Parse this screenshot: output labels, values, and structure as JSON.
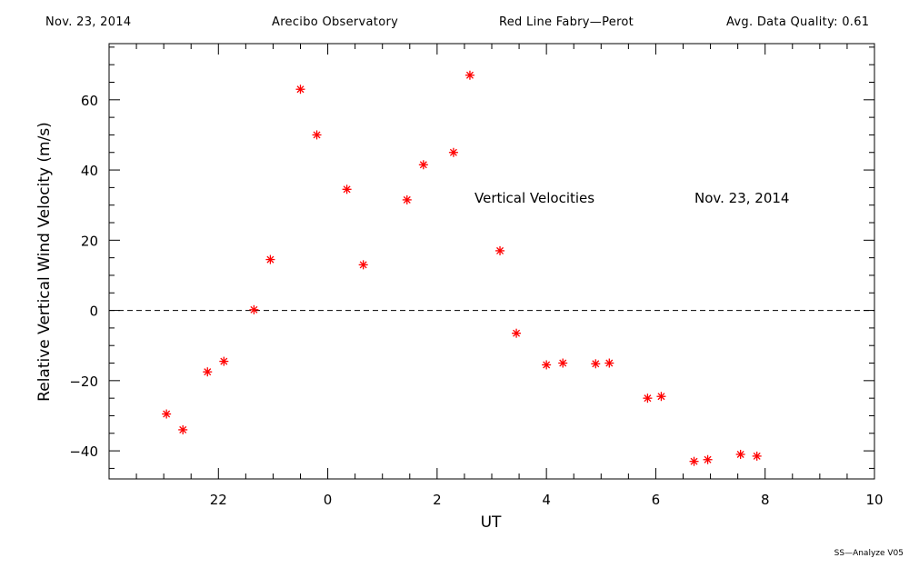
{
  "header": {
    "date": "Nov. 23, 2014",
    "observatory": "Arecibo Observatory",
    "instrument": "Red Line Fabry—Perot",
    "quality": "Avg. Data Quality: 0.61"
  },
  "footer": {
    "version": "SS—Analyze V05"
  },
  "chart_data": {
    "type": "scatter",
    "marker": "asterisk",
    "marker_color": "#ff0000",
    "xlabel": "UT",
    "ylabel": "Relative Vertical Wind Velocity (m/s)",
    "xlim": [
      -2.0,
      12.0
    ],
    "ylim": [
      -48,
      76
    ],
    "x_major_ticks": [
      {
        "value": 0.0,
        "label": "22"
      },
      {
        "value": 2.0,
        "label": "0"
      },
      {
        "value": 4.0,
        "label": "2"
      },
      {
        "value": 6.0,
        "label": "4"
      },
      {
        "value": 8.0,
        "label": "6"
      },
      {
        "value": 10.0,
        "label": "8"
      },
      {
        "value": 12.0,
        "label": "10"
      }
    ],
    "y_major_ticks": [
      -40,
      -20,
      0,
      20,
      40,
      60
    ],
    "zero_line": "dashed",
    "annotations": [
      "Vertical Velocities",
      "Nov. 23, 2014"
    ],
    "series": [
      {
        "points": [
          [
            -0.95,
            -29.5
          ],
          [
            -0.65,
            -34.0
          ],
          [
            -0.2,
            -17.5
          ],
          [
            0.1,
            -14.5
          ],
          [
            0.65,
            0.2
          ],
          [
            0.95,
            14.5
          ],
          [
            1.5,
            63.0
          ],
          [
            1.8,
            50.0
          ],
          [
            2.35,
            34.5
          ],
          [
            2.65,
            13.0
          ],
          [
            3.45,
            31.5
          ],
          [
            3.75,
            41.5
          ],
          [
            4.3,
            45.0
          ],
          [
            4.6,
            67.0
          ],
          [
            5.15,
            17.0
          ],
          [
            5.45,
            -6.5
          ],
          [
            6.0,
            -15.5
          ],
          [
            6.3,
            -15.0
          ],
          [
            6.9,
            -15.2
          ],
          [
            7.15,
            -15.0
          ],
          [
            7.85,
            -25.0
          ],
          [
            8.1,
            -24.5
          ],
          [
            8.7,
            -43.0
          ],
          [
            8.95,
            -42.5
          ],
          [
            9.55,
            -41.0
          ],
          [
            9.85,
            -41.5
          ]
        ]
      }
    ]
  }
}
